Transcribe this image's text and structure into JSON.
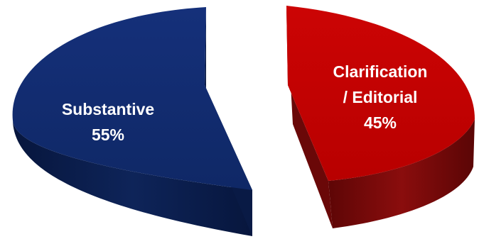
{
  "chart_data": {
    "type": "pie",
    "style": "3d-exploded",
    "slices": [
      {
        "name": "Substantive",
        "value": 55,
        "value_label": "55%",
        "color": "#102a6b",
        "side_color": "#0b1d4c"
      },
      {
        "name": "Clarification / Editorial",
        "name_lines": [
          "Clarification",
          "/ Editorial"
        ],
        "value": 45,
        "value_label": "45%",
        "color": "#c00000",
        "side_color": "#7f0a0a"
      }
    ],
    "legend": "none",
    "labels": "inside"
  }
}
